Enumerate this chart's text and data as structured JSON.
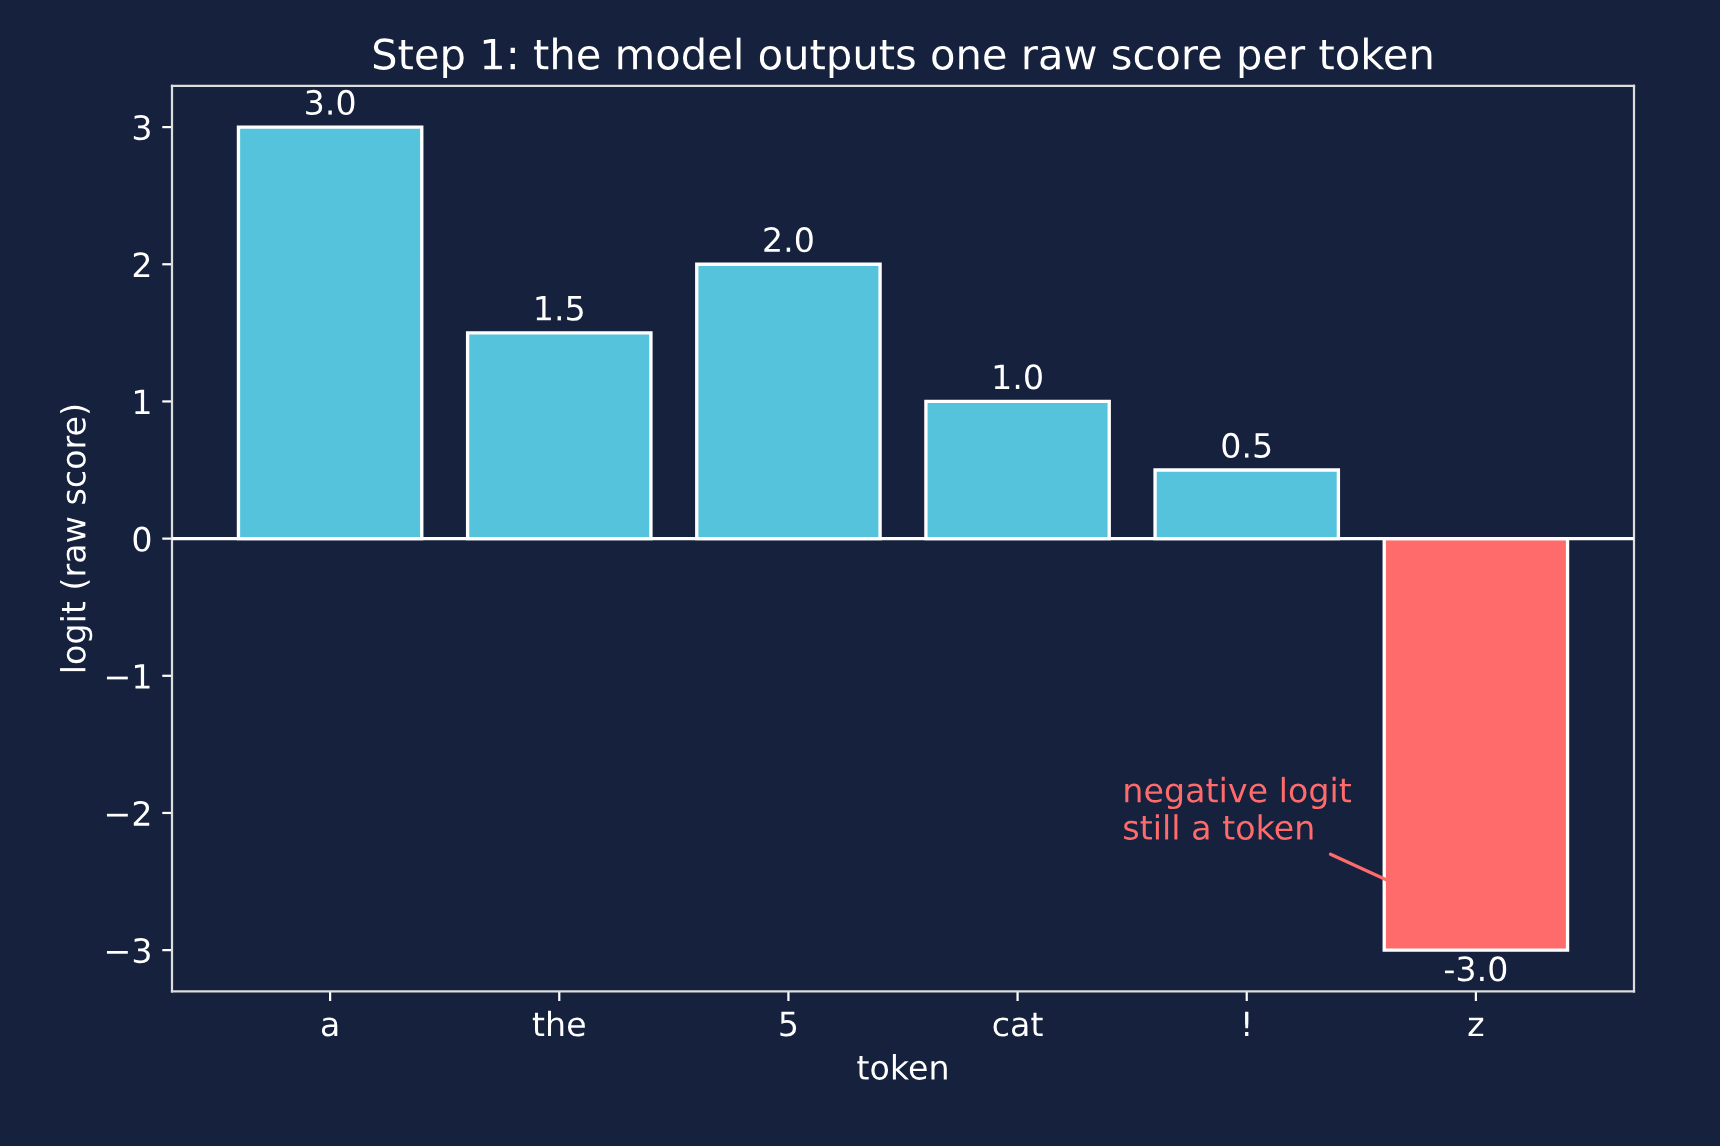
{
  "chart_data": {
    "type": "bar",
    "title": "Step 1: the model outputs one raw score per token",
    "xlabel": "token",
    "ylabel": "logit (raw score)",
    "categories": [
      "a",
      "the",
      "5",
      "cat",
      "!",
      "z"
    ],
    "values": [
      3.0,
      1.5,
      2.0,
      1.0,
      0.5,
      -3.0
    ],
    "colors": [
      "#56c3dc",
      "#56c3dc",
      "#56c3dc",
      "#56c3dc",
      "#56c3dc",
      "#ff6b6b"
    ],
    "value_labels": [
      "3.0",
      "1.5",
      "2.0",
      "1.0",
      "0.5",
      "-3.0"
    ],
    "ylim": [
      -3.3,
      3.3
    ],
    "yticks": [
      {
        "value": -3,
        "label": "−3"
      },
      {
        "value": -2,
        "label": "−2"
      },
      {
        "value": -1,
        "label": "−1"
      },
      0,
      1,
      2,
      3
    ],
    "ref_lines": [
      {
        "axis": "y",
        "value": 0,
        "color": "#ffffff"
      }
    ],
    "annotations": [
      "negative logit\nstill a token"
    ],
    "grid": false,
    "legend": false
  }
}
